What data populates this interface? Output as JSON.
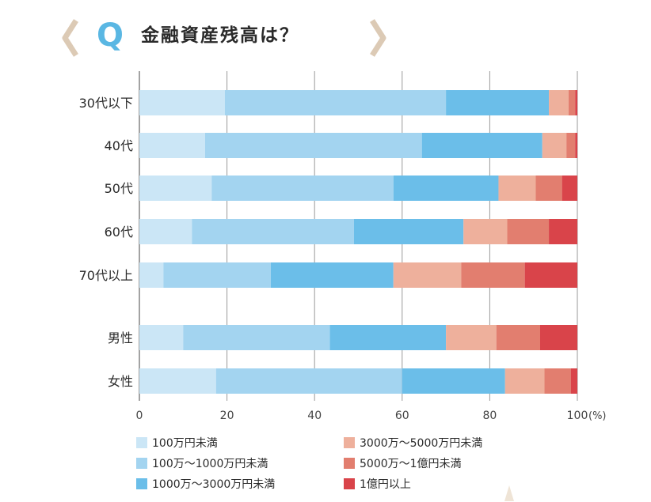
{
  "title": {
    "badge": "Q",
    "text": "金融資産残高は？"
  },
  "colors": {
    "bracket": "#dccab5",
    "badge": "#5ab7e3"
  },
  "chart_data": {
    "type": "bar",
    "orientation": "horizontal",
    "stacked": true,
    "title": "金融資産残高は？",
    "categories": [
      "30代以下",
      "40代",
      "50代",
      "60代",
      "70代以上",
      "男性",
      "女性"
    ],
    "category_gap_after_index": 4,
    "xlim": [
      0,
      100
    ],
    "x_ticks": [
      "0",
      "20",
      "40",
      "60",
      "80",
      "100"
    ],
    "x_unit": "(%)",
    "grid": true,
    "legend_placement": "bottom",
    "series": [
      {
        "name": "100万円未満",
        "color": "#cbe6f6",
        "values": [
          19.5,
          15.0,
          16.5,
          12.0,
          5.5,
          10.0,
          17.5
        ]
      },
      {
        "name": "100万～1000万円未満",
        "color": "#a3d4f0",
        "values": [
          50.5,
          49.5,
          41.5,
          37.0,
          24.5,
          33.5,
          42.5
        ]
      },
      {
        "name": "1000万～3000万円未満",
        "color": "#6bbee9",
        "values": [
          23.5,
          27.5,
          24.0,
          25.0,
          28.0,
          26.5,
          23.5
        ]
      },
      {
        "name": "3000万～5000万円未満",
        "color": "#eeb09c",
        "values": [
          4.5,
          5.5,
          8.5,
          10.0,
          15.5,
          11.5,
          9.0
        ]
      },
      {
        "name": "5000万～1億円未満",
        "color": "#e27e6f",
        "values": [
          1.5,
          2.0,
          6.0,
          9.5,
          14.5,
          10.0,
          6.0
        ]
      },
      {
        "name": "1億円以上",
        "color": "#d9444a",
        "values": [
          0.5,
          0.5,
          3.5,
          6.5,
          12.0,
          8.5,
          1.5
        ]
      }
    ]
  }
}
